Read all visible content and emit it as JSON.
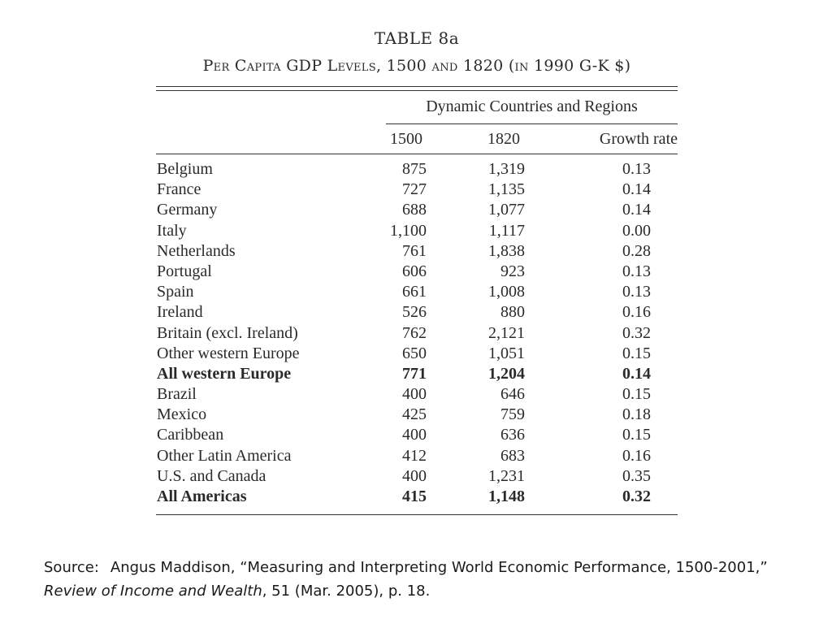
{
  "table": {
    "number": "TABLE 8a",
    "title": "Per Capita GDP Levels, 1500 and 1820 (in 1990 G-K $)",
    "group_header": "Dynamic Countries and Regions",
    "columns": [
      "1500",
      "1820",
      "Growth rate"
    ],
    "rows": [
      {
        "country": "Belgium",
        "v1500": "875",
        "v1820": "1,319",
        "growth": "0.13",
        "bold": false
      },
      {
        "country": "France",
        "v1500": "727",
        "v1820": "1,135",
        "growth": "0.14",
        "bold": false
      },
      {
        "country": "Germany",
        "v1500": "688",
        "v1820": "1,077",
        "growth": "0.14",
        "bold": false
      },
      {
        "country": "Italy",
        "v1500": "1,100",
        "v1820": "1,117",
        "growth": "0.00",
        "bold": false
      },
      {
        "country": "Netherlands",
        "v1500": "761",
        "v1820": "1,838",
        "growth": "0.28",
        "bold": false
      },
      {
        "country": "Portugal",
        "v1500": "606",
        "v1820": "923",
        "growth": "0.13",
        "bold": false
      },
      {
        "country": "Spain",
        "v1500": "661",
        "v1820": "1,008",
        "growth": "0.13",
        "bold": false
      },
      {
        "country": "Ireland",
        "v1500": "526",
        "v1820": "880",
        "growth": "0.16",
        "bold": false
      },
      {
        "country": "Britain (excl. Ireland)",
        "v1500": "762",
        "v1820": "2,121",
        "growth": "0.32",
        "bold": false
      },
      {
        "country": "Other western Europe",
        "v1500": "650",
        "v1820": "1,051",
        "growth": "0.15",
        "bold": false
      },
      {
        "country": "All western Europe",
        "v1500": "771",
        "v1820": "1,204",
        "growth": "0.14",
        "bold": true
      },
      {
        "country": "Brazil",
        "v1500": "400",
        "v1820": "646",
        "growth": "0.15",
        "bold": false
      },
      {
        "country": "Mexico",
        "v1500": "425",
        "v1820": "759",
        "growth": "0.18",
        "bold": false
      },
      {
        "country": "Caribbean",
        "v1500": "400",
        "v1820": "636",
        "growth": "0.15",
        "bold": false
      },
      {
        "country": "Other Latin America",
        "v1500": "412",
        "v1820": "683",
        "growth": "0.16",
        "bold": false
      },
      {
        "country": "U.S. and Canada",
        "v1500": "400",
        "v1820": "1,231",
        "growth": "0.35",
        "bold": false
      },
      {
        "country": "All Americas",
        "v1500": "415",
        "v1820": "1,148",
        "growth": "0.32",
        "bold": true
      }
    ]
  },
  "source": {
    "label": "Source:",
    "text_before": "Angus Maddison, “Measuring and Interpreting World Economic Performance, 1500-2001,” ",
    "journal": "Review of  Income and Wealth",
    "text_after": ", 51 (Mar. 2005), p. 18."
  }
}
